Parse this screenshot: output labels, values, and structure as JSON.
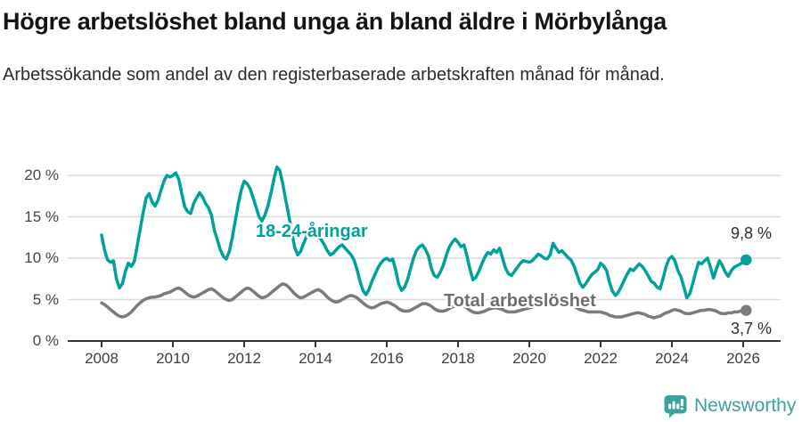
{
  "header": {
    "title": "Högre arbetslöshet bland unga än bland äldre i Mörbylånga",
    "subtitle": "Arbetssökande som andel av den registerbaserade arbetskraften månad för månad."
  },
  "chart_data": {
    "type": "line",
    "title": "Högre arbetslöshet bland unga än bland äldre i Mörbylånga",
    "subtitle": "Arbetssökande som andel av den registerbaserade arbetskraften månad för månad.",
    "x_unit": "month",
    "x_start": "2008-01",
    "x_end": "2026-02",
    "x_ticks": [
      "2008",
      "2010",
      "2012",
      "2014",
      "2016",
      "2018",
      "2020",
      "2022",
      "2024",
      "2026"
    ],
    "y_ticks": [
      {
        "value": 0,
        "label": "0 %"
      },
      {
        "value": 5,
        "label": "5 %"
      },
      {
        "value": 10,
        "label": "10 %"
      },
      {
        "value": 15,
        "label": "15 %"
      },
      {
        "value": 20,
        "label": "20 %"
      }
    ],
    "ylim": [
      0,
      21.5
    ],
    "grid": true,
    "legend_position": "inline-annotations",
    "series": [
      {
        "name": "18-24-åringar",
        "color": "#00a199",
        "end_label": "9,8 %",
        "end_value": 9.8,
        "values": [
          12.8,
          11.0,
          9.8,
          9.5,
          9.7,
          7.5,
          6.4,
          6.9,
          8.4,
          9.4,
          9.0,
          9.6,
          11.5,
          13.5,
          15.5,
          17.3,
          17.8,
          16.8,
          16.3,
          17.0,
          18.2,
          19.3,
          20.0,
          19.8,
          20.0,
          20.3,
          19.5,
          17.8,
          16.2,
          15.6,
          15.4,
          16.6,
          17.3,
          17.9,
          17.4,
          16.6,
          16.1,
          15.2,
          13.3,
          12.2,
          11.0,
          10.2,
          9.9,
          10.8,
          12.5,
          14.5,
          16.5,
          18.2,
          19.3,
          19.0,
          18.4,
          17.3,
          16.2,
          15.0,
          14.5,
          15.2,
          16.3,
          17.8,
          19.5,
          21.0,
          20.6,
          19.0,
          17.0,
          15.2,
          13.2,
          11.3,
          10.4,
          10.8,
          11.8,
          12.6,
          13.2,
          13.4,
          13.0,
          12.6,
          12.2,
          11.6,
          10.9,
          10.4,
          10.6,
          11.0,
          11.4,
          11.6,
          11.2,
          10.8,
          10.4,
          9.8,
          8.6,
          7.2,
          6.1,
          5.6,
          6.2,
          7.2,
          8.0,
          8.8,
          9.4,
          9.8,
          10.0,
          9.7,
          9.9,
          8.6,
          6.9,
          6.1,
          6.5,
          7.4,
          8.7,
          10.0,
          10.9,
          11.4,
          11.6,
          11.1,
          10.3,
          8.8,
          7.9,
          7.7,
          8.3,
          9.1,
          10.3,
          11.3,
          11.9,
          12.3,
          11.9,
          11.4,
          11.6,
          10.3,
          8.7,
          7.4,
          7.7,
          8.4,
          9.3,
          10.1,
          10.7,
          10.5,
          11.0,
          10.7,
          11.2,
          10.0,
          8.8,
          8.1,
          7.9,
          8.4,
          8.9,
          9.4,
          9.7,
          9.6,
          9.5,
          9.7,
          10.1,
          10.5,
          10.3,
          10.0,
          9.9,
          10.4,
          11.8,
          11.2,
          10.7,
          10.9,
          10.5,
          10.1,
          9.8,
          9.1,
          8.1,
          7.0,
          6.5,
          6.9,
          7.5,
          8.0,
          8.3,
          8.6,
          9.4,
          9.1,
          8.5,
          7.1,
          6.0,
          5.5,
          5.9,
          6.6,
          7.4,
          8.1,
          8.7,
          8.5,
          8.9,
          9.3,
          9.0,
          8.5,
          7.9,
          7.2,
          7.0,
          6.5,
          6.3,
          7.5,
          8.9,
          9.9,
          10.2,
          9.7,
          8.5,
          7.8,
          6.6,
          5.2,
          5.7,
          6.9,
          8.3,
          9.5,
          9.3,
          9.7,
          10.0,
          8.9,
          7.6,
          8.7,
          9.7,
          9.1,
          8.3,
          7.8,
          8.5,
          8.9,
          9.1,
          9.3,
          9.5,
          9.8
        ]
      },
      {
        "name": "Total arbetslöshet",
        "color": "#7b7b7b",
        "end_label": "3,7 %",
        "end_value": 3.7,
        "values": [
          4.6,
          4.4,
          4.1,
          3.8,
          3.5,
          3.2,
          3.0,
          2.9,
          3.0,
          3.2,
          3.5,
          3.9,
          4.3,
          4.6,
          4.9,
          5.1,
          5.2,
          5.3,
          5.3,
          5.4,
          5.5,
          5.7,
          5.8,
          5.9,
          6.1,
          6.3,
          6.4,
          6.2,
          5.9,
          5.6,
          5.4,
          5.3,
          5.4,
          5.6,
          5.8,
          6.0,
          6.2,
          6.3,
          6.1,
          5.8,
          5.5,
          5.2,
          5.0,
          4.9,
          5.0,
          5.3,
          5.6,
          5.9,
          6.2,
          6.4,
          6.3,
          6.0,
          5.7,
          5.4,
          5.2,
          5.3,
          5.5,
          5.8,
          6.1,
          6.4,
          6.7,
          6.9,
          6.8,
          6.5,
          6.1,
          5.7,
          5.4,
          5.2,
          5.3,
          5.5,
          5.7,
          5.9,
          6.1,
          6.2,
          6.0,
          5.7,
          5.3,
          5.0,
          4.8,
          4.7,
          4.8,
          5.0,
          5.2,
          5.4,
          5.5,
          5.4,
          5.2,
          4.9,
          4.6,
          4.3,
          4.1,
          4.0,
          4.1,
          4.3,
          4.5,
          4.6,
          4.7,
          4.6,
          4.4,
          4.2,
          3.9,
          3.7,
          3.6,
          3.6,
          3.7,
          3.9,
          4.1,
          4.3,
          4.5,
          4.5,
          4.4,
          4.2,
          3.9,
          3.7,
          3.6,
          3.6,
          3.7,
          3.9,
          4.1,
          4.2,
          4.3,
          4.3,
          4.2,
          4.0,
          3.7,
          3.5,
          3.4,
          3.4,
          3.5,
          3.6,
          3.8,
          3.9,
          4.0,
          4.0,
          3.9,
          3.8,
          3.6,
          3.5,
          3.5,
          3.5,
          3.6,
          3.7,
          3.8,
          3.9,
          4.0,
          4.1,
          4.3,
          4.6,
          4.8,
          4.9,
          4.8,
          4.8,
          4.7,
          4.6,
          4.6,
          4.6,
          4.6,
          4.5,
          4.4,
          4.2,
          4.0,
          3.8,
          3.7,
          3.6,
          3.5,
          3.5,
          3.5,
          3.5,
          3.5,
          3.4,
          3.3,
          3.1,
          3.0,
          2.9,
          2.9,
          2.9,
          3.0,
          3.1,
          3.2,
          3.3,
          3.4,
          3.4,
          3.3,
          3.2,
          3.0,
          2.9,
          2.8,
          2.9,
          3.0,
          3.2,
          3.4,
          3.5,
          3.7,
          3.8,
          3.7,
          3.6,
          3.4,
          3.3,
          3.3,
          3.4,
          3.5,
          3.6,
          3.7,
          3.7,
          3.8,
          3.8,
          3.7,
          3.6,
          3.4,
          3.3,
          3.3,
          3.4,
          3.4,
          3.5,
          3.5,
          3.6,
          3.6,
          3.7
        ]
      }
    ]
  },
  "colors": {
    "accent_teal": "#00a199",
    "line_gray": "#7b7b7b",
    "grid": "#dcdcdc",
    "axis": "#333333",
    "brand_teal": "#3ba29c"
  },
  "footer": {
    "brand": "Newsworthy"
  }
}
